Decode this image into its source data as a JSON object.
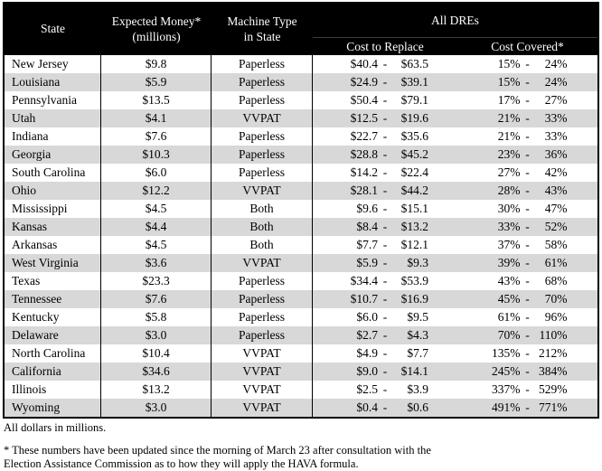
{
  "table": {
    "header": {
      "state": "State",
      "expected_money_line1": "Expected Money*",
      "expected_money_line2": "(millions)",
      "machine_type_line1": "Machine Type",
      "machine_type_line2": "in State",
      "all_dres": "All DREs",
      "cost_to_replace": "Cost to Replace",
      "cost_covered": "Cost Covered*"
    },
    "rows": [
      {
        "state": "New Jersey",
        "expected": "$9.8",
        "machine": "Paperless",
        "cost_low": "$40.4",
        "cost_high": "$63.5",
        "pct_low": "15%",
        "pct_high": "24%"
      },
      {
        "state": "Louisiana",
        "expected": "$5.9",
        "machine": "Paperless",
        "cost_low": "$24.9",
        "cost_high": "$39.1",
        "pct_low": "15%",
        "pct_high": "24%"
      },
      {
        "state": "Pennsylvania",
        "expected": "$13.5",
        "machine": "Paperless",
        "cost_low": "$50.4",
        "cost_high": "$79.1",
        "pct_low": "17%",
        "pct_high": "27%"
      },
      {
        "state": "Utah",
        "expected": "$4.1",
        "machine": "VVPAT",
        "cost_low": "$12.5",
        "cost_high": "$19.6",
        "pct_low": "21%",
        "pct_high": "33%"
      },
      {
        "state": "Indiana",
        "expected": "$7.6",
        "machine": "Paperless",
        "cost_low": "$22.7",
        "cost_high": "$35.6",
        "pct_low": "21%",
        "pct_high": "33%"
      },
      {
        "state": "Georgia",
        "expected": "$10.3",
        "machine": "Paperless",
        "cost_low": "$28.8",
        "cost_high": "$45.2",
        "pct_low": "23%",
        "pct_high": "36%"
      },
      {
        "state": "South Carolina",
        "expected": "$6.0",
        "machine": "Paperless",
        "cost_low": "$14.2",
        "cost_high": "$22.4",
        "pct_low": "27%",
        "pct_high": "42%"
      },
      {
        "state": "Ohio",
        "expected": "$12.2",
        "machine": "VVPAT",
        "cost_low": "$28.1",
        "cost_high": "$44.2",
        "pct_low": "28%",
        "pct_high": "43%"
      },
      {
        "state": "Mississippi",
        "expected": "$4.5",
        "machine": "Both",
        "cost_low": "$9.6",
        "cost_high": "$15.1",
        "pct_low": "30%",
        "pct_high": "47%"
      },
      {
        "state": "Kansas",
        "expected": "$4.4",
        "machine": "Both",
        "cost_low": "$8.4",
        "cost_high": "$13.2",
        "pct_low": "33%",
        "pct_high": "52%"
      },
      {
        "state": "Arkansas",
        "expected": "$4.5",
        "machine": "Both",
        "cost_low": "$7.7",
        "cost_high": "$12.1",
        "pct_low": "37%",
        "pct_high": "58%"
      },
      {
        "state": "West Virginia",
        "expected": "$3.6",
        "machine": "VVPAT",
        "cost_low": "$5.9",
        "cost_high": "$9.3",
        "pct_low": "39%",
        "pct_high": "61%"
      },
      {
        "state": "Texas",
        "expected": "$23.3",
        "machine": "Paperless",
        "cost_low": "$34.4",
        "cost_high": "$53.9",
        "pct_low": "43%",
        "pct_high": "68%"
      },
      {
        "state": "Tennessee",
        "expected": "$7.6",
        "machine": "Paperless",
        "cost_low": "$10.7",
        "cost_high": "$16.9",
        "pct_low": "45%",
        "pct_high": "70%"
      },
      {
        "state": "Kentucky",
        "expected": "$5.8",
        "machine": "Paperless",
        "cost_low": "$6.0",
        "cost_high": "$9.5",
        "pct_low": "61%",
        "pct_high": "96%"
      },
      {
        "state": "Delaware",
        "expected": "$3.0",
        "machine": "Paperless",
        "cost_low": "$2.7",
        "cost_high": "$4.3",
        "pct_low": "70%",
        "pct_high": "110%"
      },
      {
        "state": "North Carolina",
        "expected": "$10.4",
        "machine": "VVPAT",
        "cost_low": "$4.9",
        "cost_high": "$7.7",
        "pct_low": "135%",
        "pct_high": "212%"
      },
      {
        "state": "California",
        "expected": "$34.6",
        "machine": "VVPAT",
        "cost_low": "$9.0",
        "cost_high": "$14.1",
        "pct_low": "245%",
        "pct_high": "384%"
      },
      {
        "state": "Illinois",
        "expected": "$13.2",
        "machine": "VVPAT",
        "cost_low": "$2.5",
        "cost_high": "$3.9",
        "pct_low": "337%",
        "pct_high": "529%"
      },
      {
        "state": "Wyoming",
        "expected": "$3.0",
        "machine": "VVPAT",
        "cost_low": "$0.4",
        "cost_high": "$0.6",
        "pct_low": "491%",
        "pct_high": "771%"
      }
    ],
    "range_separator": "-"
  },
  "footnotes": {
    "dollars": "All dollars in millions.",
    "note_line1": "* These numbers have been updated since the morning of March 23 after consultation with the",
    "note_line2": "Election Assistance Commission as to how they will apply the HAVA formula."
  },
  "colors": {
    "header_bg": "#000000",
    "header_text": "#ffffff",
    "row_alt": "#d8d8d8",
    "border": "#000000"
  }
}
